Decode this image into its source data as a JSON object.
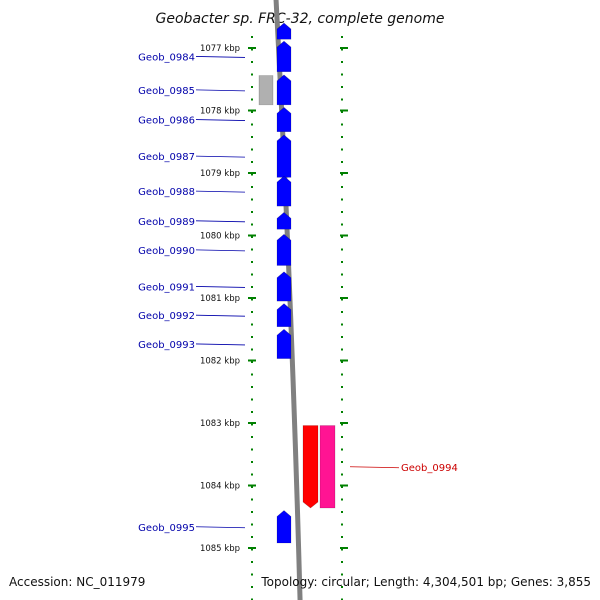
{
  "title": "Geobacter sp. FRC-32, complete genome",
  "footer": {
    "accession": "Accession: NC_011979",
    "summary": "Topology: circular; Length: 4,304,501 bp; Genes: 3,855"
  },
  "colors": {
    "forward_gene": "#0000ff",
    "reverse_gene": "#ff0000",
    "reverse_rna": "#ff1493",
    "other_feature": "#b0b0b0",
    "backbone": "#808080",
    "tick": "#008000",
    "label_forward": "#0000aa",
    "label_reverse": "#cc0000"
  },
  "scale": {
    "unit": "kbp",
    "ticks": [
      "1077 kbp",
      "1078 kbp",
      "1079 kbp",
      "1080 kbp",
      "1081 kbp",
      "1082 kbp",
      "1083 kbp",
      "1084 kbp",
      "1085 kbp"
    ]
  },
  "genes": [
    {
      "id": "geob-0983-partial",
      "label": "",
      "strand": "forward",
      "start_kbp": 1076.6,
      "end_kbp": 1076.86
    },
    {
      "id": "geob-0984",
      "label": "Geob_0984",
      "strand": "forward",
      "start_kbp": 1076.89,
      "end_kbp": 1077.38
    },
    {
      "id": "geob-0985",
      "label": "Geob_0985",
      "strand": "forward",
      "start_kbp": 1077.43,
      "end_kbp": 1077.91
    },
    {
      "id": "geob-0985-neighbor",
      "label": "",
      "strand": "other",
      "start_kbp": 1077.44,
      "end_kbp": 1077.91
    },
    {
      "id": "geob-0986",
      "label": "Geob_0986",
      "strand": "forward",
      "start_kbp": 1077.95,
      "end_kbp": 1078.34
    },
    {
      "id": "geob-0987",
      "label": "Geob_0987",
      "strand": "forward",
      "start_kbp": 1078.39,
      "end_kbp": 1079.07
    },
    {
      "id": "geob-0988",
      "label": "Geob_0988",
      "strand": "forward",
      "start_kbp": 1079.05,
      "end_kbp": 1079.53
    },
    {
      "id": "geob-0989",
      "label": "Geob_0989",
      "strand": "forward",
      "start_kbp": 1079.63,
      "end_kbp": 1079.9
    },
    {
      "id": "geob-0990",
      "label": "Geob_0990",
      "strand": "forward",
      "start_kbp": 1079.98,
      "end_kbp": 1080.48
    },
    {
      "id": "geob-0991",
      "label": "Geob_0991",
      "strand": "forward",
      "start_kbp": 1080.58,
      "end_kbp": 1081.05
    },
    {
      "id": "geob-0992",
      "label": "Geob_0992",
      "strand": "forward",
      "start_kbp": 1081.09,
      "end_kbp": 1081.46
    },
    {
      "id": "geob-0993",
      "label": "Geob_0993",
      "strand": "forward",
      "start_kbp": 1081.5,
      "end_kbp": 1081.97
    },
    {
      "id": "geob-0994-gene",
      "label": "",
      "strand": "reverse",
      "start_kbp": 1083.04,
      "end_kbp": 1084.36
    },
    {
      "id": "geob-0994",
      "label": "Geob_0994",
      "strand": "reverse-rna",
      "start_kbp": 1083.04,
      "end_kbp": 1084.36
    },
    {
      "id": "geob-0995",
      "label": "Geob_0995",
      "strand": "forward",
      "start_kbp": 1084.4,
      "end_kbp": 1084.92
    }
  ]
}
